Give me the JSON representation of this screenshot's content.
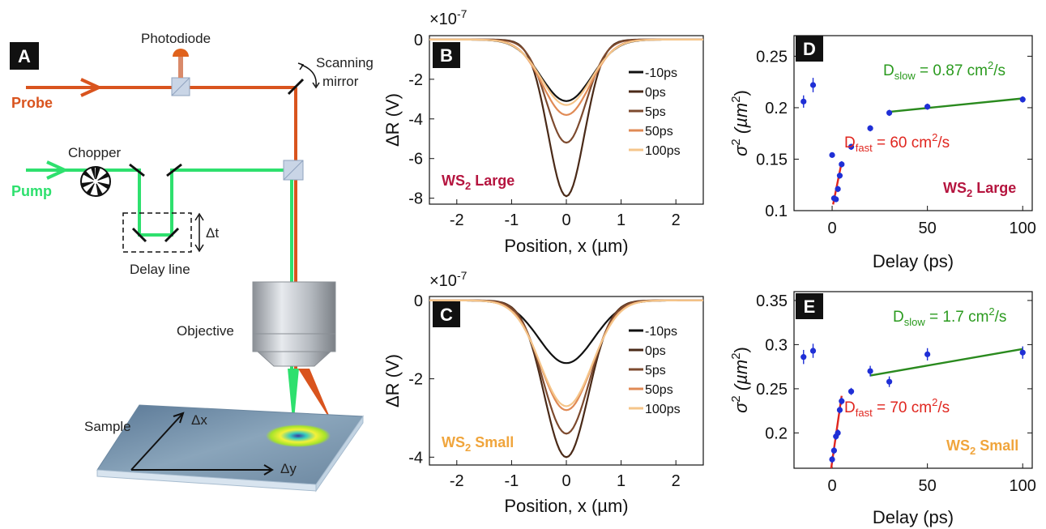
{
  "panel_a": {
    "letter": "A",
    "labels": {
      "photodiode": "Photodiode",
      "scanning": "Scanning",
      "mirror": "mirror",
      "probe": "Probe",
      "pump": "Pump",
      "chopper": "Chopper",
      "delta_t": "Δt",
      "delay_line": "Delay line",
      "objective": "Objective",
      "sample": "Sample",
      "delta_x": "Δx",
      "delta_y": "Δy"
    },
    "colors": {
      "probe": "#d9541e",
      "pump": "#2ee06e"
    }
  },
  "chart_data": [
    {
      "panel": "B",
      "type": "line",
      "multiplier": "×10",
      "multiplier_exp": "-7",
      "xlabel": "Position, x (µm)",
      "ylabel": "ΔR (V)",
      "xlim": [
        -2.5,
        2.5
      ],
      "ylim": [
        -8.3,
        0.2
      ],
      "xticks": [
        -2,
        -1,
        0,
        1,
        2
      ],
      "yticks": [
        0,
        -2,
        -4,
        -6,
        -8
      ],
      "sample_label": "WS",
      "sample_sub": "2",
      "sample_suffix": " Large",
      "sample_color": "#b5153f",
      "series": [
        {
          "name": "-10ps",
          "color": "#111111",
          "amp": 3.1,
          "sigma": 0.46
        },
        {
          "name": "0ps",
          "color": "#4a2a18",
          "amp": 7.9,
          "sigma": 0.33
        },
        {
          "name": "5ps",
          "color": "#7d4a2e",
          "amp": 5.2,
          "sigma": 0.36
        },
        {
          "name": "50ps",
          "color": "#e08a55",
          "amp": 3.8,
          "sigma": 0.43
        },
        {
          "name": "100ps",
          "color": "#f5c58a",
          "amp": 3.3,
          "sigma": 0.45
        }
      ]
    },
    {
      "panel": "C",
      "type": "line",
      "multiplier": "×10",
      "multiplier_exp": "-7",
      "xlabel": "Position, x (µm)",
      "ylabel": "ΔR (V)",
      "xlim": [
        -2.5,
        2.5
      ],
      "ylim": [
        -4.2,
        0.1
      ],
      "xticks": [
        -2,
        -1,
        0,
        1,
        2
      ],
      "yticks": [
        0,
        -2,
        -4
      ],
      "sample_label": "WS",
      "sample_sub": "2",
      "sample_suffix": " Small",
      "sample_color": "#f0a53c",
      "series": [
        {
          "name": "-10ps",
          "color": "#111111",
          "amp": 1.6,
          "sigma": 0.5
        },
        {
          "name": "0ps",
          "color": "#4a2a18",
          "amp": 4.0,
          "sigma": 0.4
        },
        {
          "name": "5ps",
          "color": "#7d4a2e",
          "amp": 3.4,
          "sigma": 0.42
        },
        {
          "name": "50ps",
          "color": "#e08a55",
          "amp": 2.8,
          "sigma": 0.46
        },
        {
          "name": "100ps",
          "color": "#f5c58a",
          "amp": 2.7,
          "sigma": 0.47
        }
      ]
    },
    {
      "panel": "D",
      "type": "scatter",
      "xlabel": "Delay (ps)",
      "ylabel_base": "σ",
      "ylabel_sup": "2",
      "ylabel_unit": " (µm",
      "ylabel_unit_sup": "2",
      "ylabel_close": ")",
      "xlim": [
        -20,
        105
      ],
      "ylim": [
        0.1,
        0.27
      ],
      "xticks": [
        0,
        50,
        100
      ],
      "yticks": [
        0.1,
        0.15,
        0.2,
        0.25
      ],
      "ytick_labels": [
        "0.1",
        "0.15",
        "0.2",
        "0.25"
      ],
      "points": [
        {
          "x": -15,
          "y": 0.206,
          "err": 0.006
        },
        {
          "x": -10,
          "y": 0.222,
          "err": 0.007
        },
        {
          "x": 0,
          "y": 0.154,
          "err": 0.002
        },
        {
          "x": 1,
          "y": 0.112,
          "err": 0.002
        },
        {
          "x": 2,
          "y": 0.111,
          "err": 0.002
        },
        {
          "x": 3,
          "y": 0.121,
          "err": 0.003
        },
        {
          "x": 4,
          "y": 0.134,
          "err": 0.003
        },
        {
          "x": 5,
          "y": 0.145,
          "err": 0.003
        },
        {
          "x": 10,
          "y": 0.162,
          "err": 0.003
        },
        {
          "x": 20,
          "y": 0.18,
          "err": 0.003
        },
        {
          "x": 30,
          "y": 0.195,
          "err": 0.003
        },
        {
          "x": 50,
          "y": 0.201,
          "err": 0.003
        },
        {
          "x": 100,
          "y": 0.208,
          "err": 0.003
        }
      ],
      "fits": [
        {
          "x": [
            0.5,
            5
          ],
          "y": [
            0.106,
            0.147
          ],
          "color": "#e0261f"
        },
        {
          "x": [
            30,
            100
          ],
          "y": [
            0.196,
            0.209
          ],
          "color": "#2a8a1e"
        }
      ],
      "ann_slow": {
        "pre": "D",
        "sub": "slow",
        "post": " = 0.87 cm",
        "sup": "2",
        "tail": "/s",
        "color": "#2a9a1e"
      },
      "ann_fast": {
        "pre": "D",
        "sub": "fast",
        "post": " = 60 cm",
        "sup": "2",
        "tail": "/s",
        "color": "#e0261f"
      },
      "sample_label": "WS",
      "sample_sub": "2",
      "sample_suffix": " Large",
      "sample_color": "#b5153f"
    },
    {
      "panel": "E",
      "type": "scatter",
      "xlabel": "Delay (ps)",
      "ylabel_base": "σ",
      "ylabel_sup": "2",
      "ylabel_unit": " (µm",
      "ylabel_unit_sup": "2",
      "ylabel_close": ")",
      "xlim": [
        -20,
        105
      ],
      "ylim": [
        0.16,
        0.36
      ],
      "xticks": [
        0,
        50,
        100
      ],
      "yticks": [
        0.2,
        0.25,
        0.3,
        0.35
      ],
      "ytick_labels": [
        "0.2",
        "0.25",
        "0.3",
        "0.35"
      ],
      "points": [
        {
          "x": -15,
          "y": 0.286,
          "err": 0.008
        },
        {
          "x": -10,
          "y": 0.293,
          "err": 0.008
        },
        {
          "x": 0,
          "y": 0.17,
          "err": 0.004
        },
        {
          "x": 1,
          "y": 0.18,
          "err": 0.004
        },
        {
          "x": 2,
          "y": 0.196,
          "err": 0.004
        },
        {
          "x": 3,
          "y": 0.2,
          "err": 0.004
        },
        {
          "x": 4,
          "y": 0.226,
          "err": 0.004
        },
        {
          "x": 5,
          "y": 0.236,
          "err": 0.004
        },
        {
          "x": 10,
          "y": 0.247,
          "err": 0.004
        },
        {
          "x": 20,
          "y": 0.27,
          "err": 0.006
        },
        {
          "x": 30,
          "y": 0.258,
          "err": 0.006
        },
        {
          "x": 50,
          "y": 0.289,
          "err": 0.007
        },
        {
          "x": 100,
          "y": 0.291,
          "err": 0.007
        }
      ],
      "fits": [
        {
          "x": [
            -0.5,
            5
          ],
          "y": [
            0.16,
            0.242
          ],
          "color": "#e0261f"
        },
        {
          "x": [
            20,
            100
          ],
          "y": [
            0.265,
            0.295
          ],
          "color": "#2a8a1e"
        }
      ],
      "ann_slow": {
        "pre": "D",
        "sub": "slow",
        "post": " = 1.7 cm",
        "sup": "2",
        "tail": "/s",
        "color": "#2a9a1e"
      },
      "ann_fast": {
        "pre": "D",
        "sub": "fast",
        "post": " = 70 cm",
        "sup": "2",
        "tail": "/s",
        "color": "#e0261f"
      },
      "sample_label": "WS",
      "sample_sub": "2",
      "sample_suffix": " Small",
      "sample_color": "#f0a53c"
    }
  ]
}
